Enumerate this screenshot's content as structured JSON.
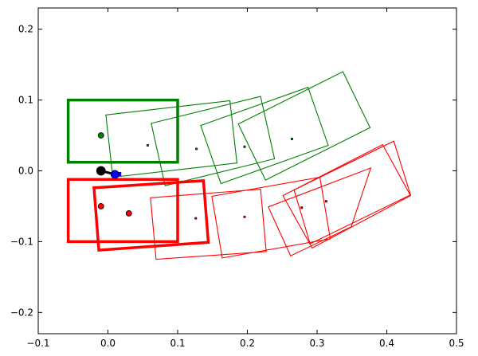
{
  "chart_data": {
    "type": "scatter",
    "title": "",
    "xlabel": "",
    "ylabel": "",
    "xlim": [
      -0.1,
      0.5
    ],
    "ylim": [
      -0.23,
      0.23
    ],
    "grid": false,
    "xticks": [
      -0.1,
      0.0,
      0.1,
      0.2,
      0.3,
      0.4,
      0.5
    ],
    "xtick_labels": [
      "−0.1",
      "0.0",
      "0.1",
      "0.2",
      "0.3",
      "0.4",
      "0.5"
    ],
    "yticks": [
      -0.2,
      -0.1,
      0.0,
      0.1,
      0.2
    ],
    "ytick_labels": [
      "−0.2",
      "−0.1",
      "0.0",
      "0.1",
      "0.2"
    ],
    "boxes": [
      {
        "group": "green",
        "bold": true,
        "corners": [
          [
            -0.057,
            0.1
          ],
          [
            0.1,
            0.1
          ],
          [
            0.1,
            0.012
          ],
          [
            -0.057,
            0.012
          ]
        ]
      },
      {
        "group": "green",
        "bold": false,
        "corners": [
          [
            -0.003,
            0.079
          ],
          [
            0.175,
            0.099
          ],
          [
            0.185,
            0.011
          ],
          [
            0.007,
            -0.009
          ]
        ]
      },
      {
        "group": "green",
        "bold": false,
        "corners": [
          [
            0.062,
            0.067
          ],
          [
            0.219,
            0.105
          ],
          [
            0.239,
            0.017
          ],
          [
            0.082,
            -0.021
          ]
        ]
      },
      {
        "group": "green",
        "bold": false,
        "corners": [
          [
            0.133,
            0.064
          ],
          [
            0.287,
            0.118
          ],
          [
            0.316,
            0.036
          ],
          [
            0.162,
            -0.018
          ]
        ]
      },
      {
        "group": "green",
        "bold": false,
        "corners": [
          [
            0.187,
            0.066
          ],
          [
            0.337,
            0.14
          ],
          [
            0.376,
            0.061
          ],
          [
            0.226,
            -0.013
          ]
        ]
      },
      {
        "group": "red",
        "bold": true,
        "corners": [
          [
            -0.057,
            -0.012
          ],
          [
            0.1,
            -0.012
          ],
          [
            0.1,
            -0.1
          ],
          [
            -0.057,
            -0.1
          ]
        ]
      },
      {
        "group": "red",
        "bold": true,
        "corners": [
          [
            -0.02,
            -0.024
          ],
          [
            0.137,
            -0.014
          ],
          [
            0.144,
            -0.101
          ],
          [
            -0.013,
            -0.112
          ]
        ]
      },
      {
        "group": "red",
        "bold": false,
        "corners": [
          [
            0.061,
            -0.038
          ],
          [
            0.219,
            -0.026
          ],
          [
            0.227,
            -0.114
          ],
          [
            0.069,
            -0.125
          ]
        ]
      },
      {
        "group": "red",
        "bold": false,
        "corners": [
          [
            0.149,
            -0.036
          ],
          [
            0.304,
            -0.009
          ],
          [
            0.319,
            -0.096
          ],
          [
            0.164,
            -0.123
          ]
        ]
      },
      {
        "group": "red",
        "bold": false,
        "corners": [
          [
            0.23,
            -0.051
          ],
          [
            0.377,
            0.004
          ],
          [
            0.349,
            -0.079
          ],
          [
            0.262,
            -0.12
          ]
        ]
      },
      {
        "group": "red",
        "bold": false,
        "corners": [
          [
            0.251,
            -0.035
          ],
          [
            0.394,
            0.037
          ],
          [
            0.434,
            -0.035
          ],
          [
            0.293,
            -0.109
          ]
        ]
      },
      {
        "group": "red",
        "bold": false,
        "corners": [
          [
            0.267,
            -0.027
          ],
          [
            0.41,
            0.042
          ],
          [
            0.434,
            -0.034
          ],
          [
            0.29,
            -0.103
          ]
        ]
      }
    ],
    "box_centers": [
      {
        "group": "green",
        "x": 0.057,
        "y": 0.036
      },
      {
        "group": "green",
        "x": 0.127,
        "y": 0.031
      },
      {
        "group": "green",
        "x": 0.196,
        "y": 0.034
      },
      {
        "group": "green",
        "x": 0.264,
        "y": 0.045
      },
      {
        "group": "red",
        "x": 0.126,
        "y": -0.067
      },
      {
        "group": "red",
        "x": 0.196,
        "y": -0.065
      },
      {
        "group": "red",
        "x": 0.278,
        "y": -0.052
      },
      {
        "group": "red",
        "x": 0.313,
        "y": -0.043
      }
    ],
    "points": [
      {
        "group": "green",
        "x": -0.01,
        "y": 0.05
      },
      {
        "group": "red",
        "x": -0.01,
        "y": -0.05
      },
      {
        "group": "red",
        "x": 0.03,
        "y": -0.06
      },
      {
        "group": "black",
        "x": -0.01,
        "y": 0.0
      },
      {
        "group": "blue",
        "x": 0.01,
        "y": -0.005
      }
    ],
    "colors": {
      "green": "#008000",
      "red": "#ff0000",
      "black": "#000000",
      "blue": "#0000ff",
      "axes": "#000000"
    }
  }
}
